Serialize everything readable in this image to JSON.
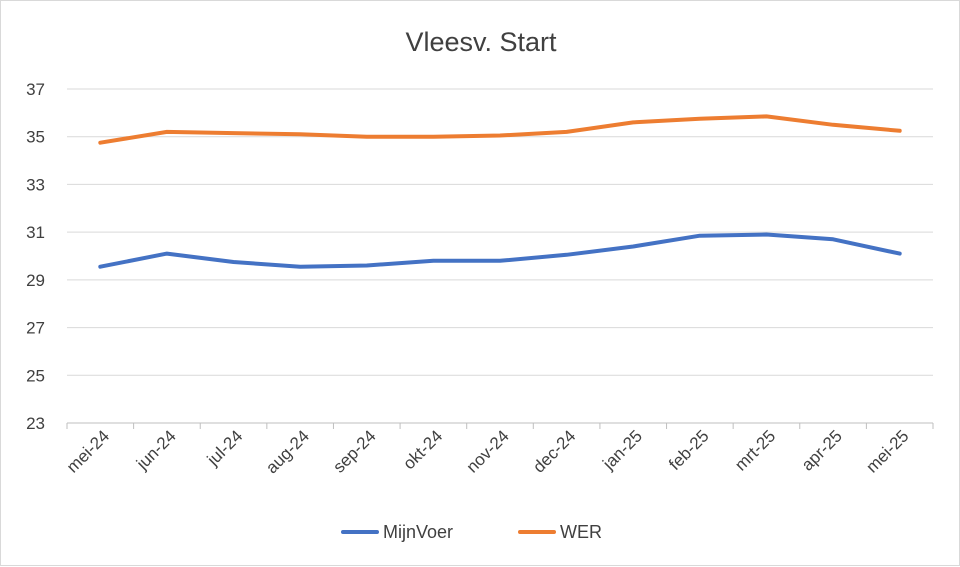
{
  "chart_data": {
    "type": "line",
    "title": "Vleesv. Start",
    "xlabel": "",
    "ylabel": "",
    "categories": [
      "mei-24",
      "jun-24",
      "jul-24",
      "aug-24",
      "sep-24",
      "okt-24",
      "nov-24",
      "dec-24",
      "jan-25",
      "feb-25",
      "mrt-25",
      "apr-25",
      "mei-25"
    ],
    "ylim": [
      23,
      37
    ],
    "yticks": [
      23,
      25,
      27,
      29,
      31,
      33,
      35,
      37
    ],
    "grid": true,
    "legend_position": "bottom",
    "series": [
      {
        "name": "MijnVoer",
        "color": "#4472C4",
        "values": [
          29.55,
          30.1,
          29.75,
          29.55,
          29.6,
          29.8,
          29.8,
          30.05,
          30.4,
          30.85,
          30.9,
          30.7,
          30.1
        ]
      },
      {
        "name": "WER",
        "color": "#ED7D31",
        "values": [
          34.75,
          35.2,
          35.15,
          35.1,
          35.0,
          35.0,
          35.05,
          35.2,
          35.6,
          35.75,
          35.85,
          35.5,
          35.25
        ]
      }
    ]
  }
}
